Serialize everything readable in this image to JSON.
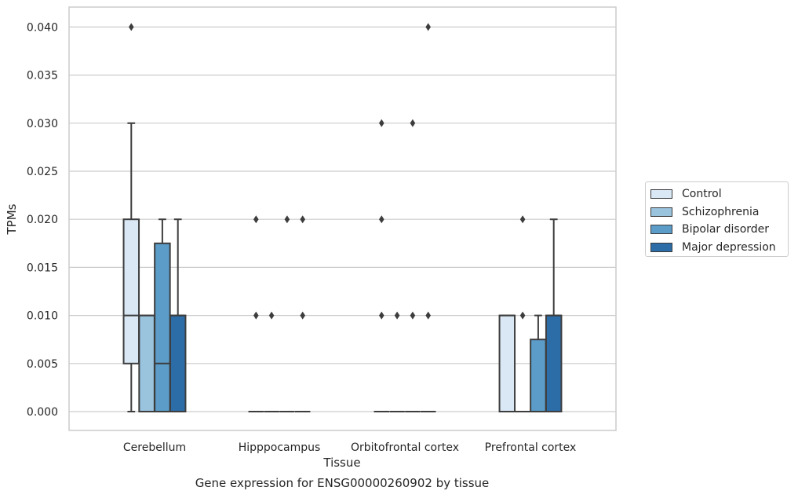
{
  "chart_data": {
    "type": "box",
    "title": "Gene expression for ENSG00000260902 by tissue",
    "xlabel": "Tissue",
    "ylabel": "TPMs",
    "ylim": [
      -0.002,
      0.042
    ],
    "yticks": [
      "0.000",
      "0.005",
      "0.010",
      "0.015",
      "0.020",
      "0.025",
      "0.030",
      "0.035",
      "0.040"
    ],
    "grid": true,
    "legend_position": "right",
    "categories": [
      "Cerebellum",
      "Hipppocampus",
      "Orbitofrontal cortex",
      "Prefrontal cortex"
    ],
    "series": [
      {
        "name": "Control",
        "color": "#dae8f5",
        "boxes": [
          {
            "q1": 0.005,
            "median": 0.01,
            "q3": 0.02,
            "whislo": 0.0,
            "whishi": 0.03,
            "fliers": [
              0.04
            ]
          },
          {
            "q1": 0.0,
            "median": 0.0,
            "q3": 0.0,
            "whislo": 0.0,
            "whishi": 0.0,
            "fliers": [
              0.01,
              0.02
            ]
          },
          {
            "q1": 0.0,
            "median": 0.0,
            "q3": 0.0,
            "whislo": 0.0,
            "whishi": 0.0,
            "fliers": [
              0.01,
              0.02,
              0.03
            ]
          },
          {
            "q1": 0.0,
            "median": 0.01,
            "q3": 0.01,
            "whislo": 0.0,
            "whishi": 0.01,
            "fliers": []
          }
        ]
      },
      {
        "name": "Schizophrenia",
        "color": "#9ac3dd",
        "boxes": [
          {
            "q1": 0.0,
            "median": 0.01,
            "q3": 0.01,
            "whislo": 0.0,
            "whishi": 0.01,
            "fliers": []
          },
          {
            "q1": 0.0,
            "median": 0.0,
            "q3": 0.0,
            "whislo": 0.0,
            "whishi": 0.0,
            "fliers": [
              0.01
            ]
          },
          {
            "q1": 0.0,
            "median": 0.0,
            "q3": 0.0,
            "whislo": 0.0,
            "whishi": 0.0,
            "fliers": [
              0.01
            ]
          },
          {
            "q1": 0.0,
            "median": 0.0,
            "q3": 0.0,
            "whislo": 0.0,
            "whishi": 0.0,
            "fliers": [
              0.01,
              0.02
            ]
          }
        ]
      },
      {
        "name": "Bipolar disorder",
        "color": "#5b9cc9",
        "boxes": [
          {
            "q1": 0.0,
            "median": 0.005,
            "q3": 0.0175,
            "whislo": 0.0,
            "whishi": 0.02,
            "fliers": []
          },
          {
            "q1": 0.0,
            "median": 0.0,
            "q3": 0.0,
            "whislo": 0.0,
            "whishi": 0.0,
            "fliers": [
              0.02
            ]
          },
          {
            "q1": 0.0,
            "median": 0.0,
            "q3": 0.0,
            "whislo": 0.0,
            "whishi": 0.0,
            "fliers": [
              0.01,
              0.03
            ]
          },
          {
            "q1": 0.0,
            "median": 0.0,
            "q3": 0.0075,
            "whislo": 0.0,
            "whishi": 0.01,
            "fliers": []
          }
        ]
      },
      {
        "name": "Major depression",
        "color": "#2c6da8",
        "boxes": [
          {
            "q1": 0.0,
            "median": 0.01,
            "q3": 0.01,
            "whislo": 0.0,
            "whishi": 0.02,
            "fliers": []
          },
          {
            "q1": 0.0,
            "median": 0.0,
            "q3": 0.0,
            "whislo": 0.0,
            "whishi": 0.0,
            "fliers": [
              0.01,
              0.02
            ]
          },
          {
            "q1": 0.0,
            "median": 0.0,
            "q3": 0.0,
            "whislo": 0.0,
            "whishi": 0.0,
            "fliers": [
              0.01,
              0.04
            ]
          },
          {
            "q1": 0.0,
            "median": 0.01,
            "q3": 0.01,
            "whislo": 0.0,
            "whishi": 0.02,
            "fliers": []
          }
        ]
      }
    ]
  }
}
